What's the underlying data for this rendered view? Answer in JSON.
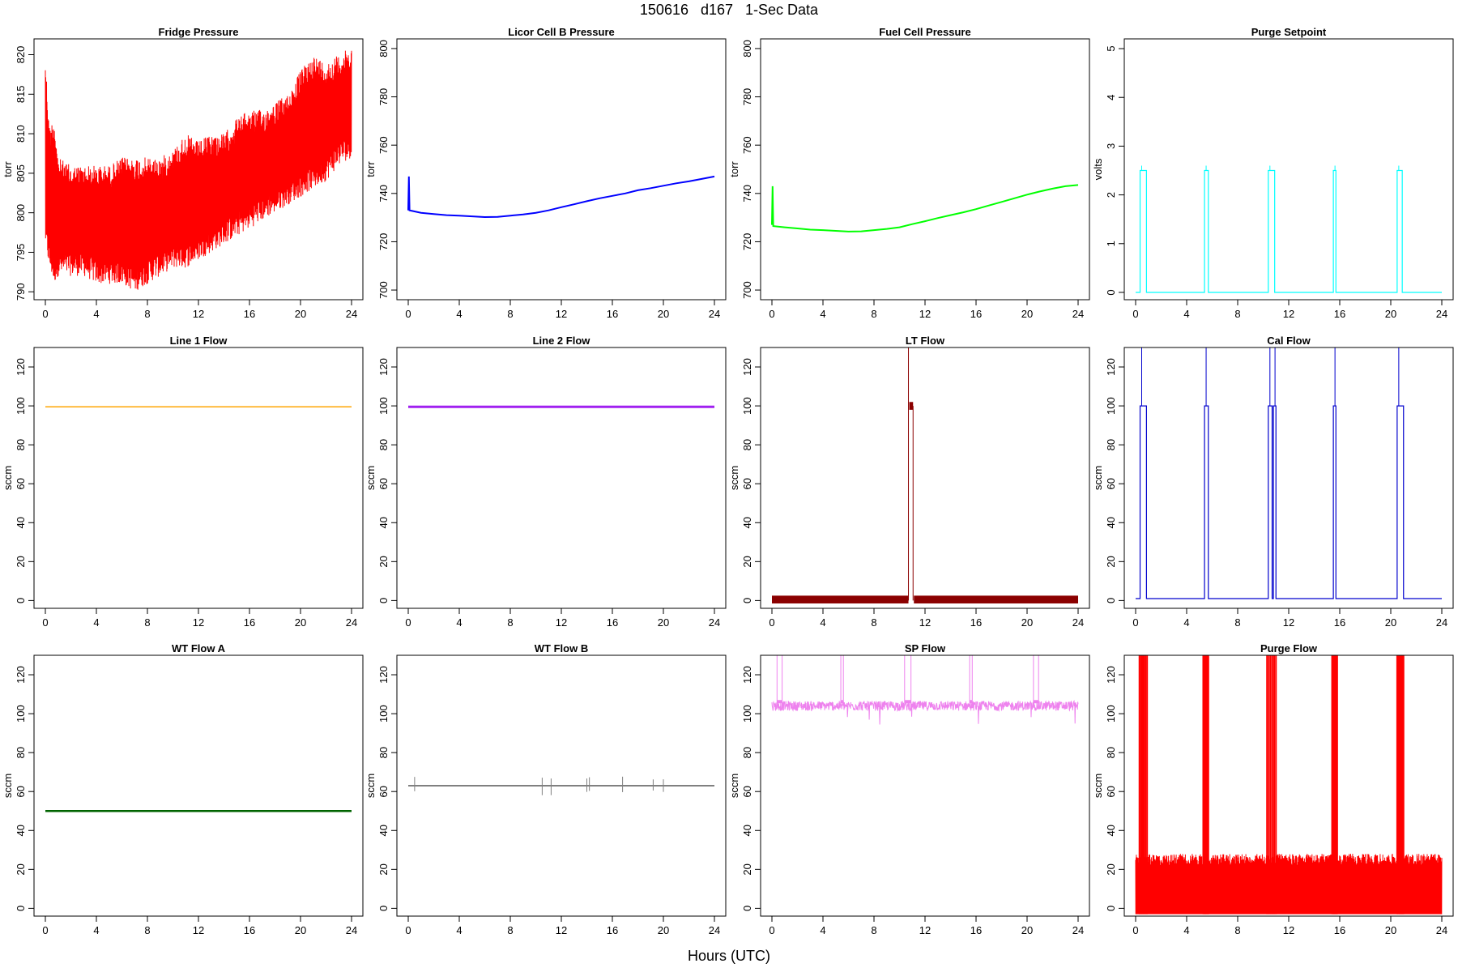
{
  "title": "150616   d167   1-Sec Data",
  "xlabel": "Hours (UTC)",
  "chart_data": [
    {
      "type": "line",
      "title": "Fridge Pressure",
      "ylabel": "torr",
      "color": "#ff0000",
      "xlim": [
        0,
        24
      ],
      "ylim": [
        789,
        822
      ],
      "xticks": [
        "0",
        "4",
        "8",
        "12",
        "16",
        "20",
        "24"
      ],
      "yticks": [
        "790",
        "795",
        "800",
        "805",
        "810",
        "815",
        "820"
      ],
      "series": [
        {
          "x": [
            0,
            0.3,
            0.7,
            1,
            2,
            3,
            4,
            5,
            6,
            7,
            8,
            9,
            10,
            11,
            12,
            13,
            14,
            15,
            16,
            17,
            18,
            19,
            20,
            21,
            22,
            23,
            24
          ],
          "upper": [
            820,
            811,
            812,
            807,
            806,
            806,
            806,
            806,
            807,
            807,
            807,
            807,
            808,
            810,
            809,
            810,
            810,
            812,
            813,
            813,
            814,
            815,
            818,
            820,
            819,
            820,
            821
          ],
          "lower": [
            796,
            793,
            791,
            792,
            792,
            792,
            791,
            791,
            791,
            790,
            791,
            792,
            793,
            793,
            794,
            795,
            796,
            797,
            798,
            799,
            800,
            801,
            802,
            803,
            804,
            806,
            807
          ]
        }
      ]
    },
    {
      "type": "line",
      "title": "Licor Cell B Pressure",
      "ylabel": "torr",
      "color": "#0000ff",
      "xlim": [
        0,
        24
      ],
      "ylim": [
        696,
        804
      ],
      "xticks": [
        "0",
        "4",
        "8",
        "12",
        "16",
        "20",
        "24"
      ],
      "yticks": [
        "700",
        "720",
        "740",
        "760",
        "780",
        "800"
      ],
      "series": [
        {
          "x": [
            0,
            0.05,
            0.1,
            1,
            2,
            3,
            4,
            5,
            6,
            7,
            8,
            9,
            10,
            11,
            12,
            13,
            14,
            15,
            16,
            17,
            18,
            19,
            20,
            21,
            22,
            23,
            24
          ],
          "values": [
            733,
            747,
            733,
            732,
            731.5,
            731,
            730.8,
            730.5,
            730.2,
            730.3,
            730.8,
            731.3,
            732,
            733,
            734.3,
            735.5,
            736.8,
            738,
            739,
            740,
            741.3,
            742.2,
            743.2,
            744.2,
            745,
            746,
            747
          ]
        }
      ]
    },
    {
      "type": "line",
      "title": "Fuel Cell Pressure",
      "ylabel": "torr",
      "color": "#00ff00",
      "xlim": [
        0,
        24
      ],
      "ylim": [
        696,
        804
      ],
      "xticks": [
        "0",
        "4",
        "8",
        "12",
        "16",
        "20",
        "24"
      ],
      "yticks": [
        "700",
        "720",
        "740",
        "760",
        "780",
        "800"
      ],
      "series": [
        {
          "x": [
            0,
            0.05,
            0.1,
            1,
            2,
            3,
            4,
            5,
            6,
            7,
            8,
            9,
            10,
            11,
            12,
            13,
            14,
            15,
            16,
            17,
            18,
            19,
            20,
            21,
            22,
            23,
            24
          ],
          "values": [
            727,
            743,
            726.5,
            726,
            725.5,
            725,
            724.8,
            724.5,
            724.2,
            724.3,
            724.8,
            725.3,
            726,
            727.3,
            728.5,
            729.8,
            731,
            732.2,
            733.5,
            735,
            736.5,
            738,
            739.5,
            740.8,
            742,
            743,
            743.5
          ]
        }
      ]
    },
    {
      "type": "line",
      "title": "Purge Setpoint",
      "ylabel": "volts",
      "color": "#00ffff",
      "xlim": [
        0,
        24
      ],
      "ylim": [
        -0.15,
        5.2
      ],
      "xticks": [
        "0",
        "4",
        "8",
        "12",
        "16",
        "20",
        "24"
      ],
      "yticks": [
        "0",
        "1",
        "2",
        "3",
        "4",
        "5"
      ],
      "pulses_hours": [
        [
          0.35,
          0.85
        ],
        [
          5.4,
          5.7
        ],
        [
          10.4,
          10.9
        ],
        [
          15.5,
          15.7
        ],
        [
          20.5,
          20.9
        ]
      ],
      "pulse_level": 2.5,
      "base_level": 0
    },
    {
      "type": "line",
      "title": "Line 1 Flow",
      "ylabel": "sccm",
      "color": "#ffa500",
      "xlim": [
        0,
        24
      ],
      "ylim": [
        -4,
        130
      ],
      "xticks": [
        "0",
        "4",
        "8",
        "12",
        "16",
        "20",
        "24"
      ],
      "yticks": [
        "0",
        "20",
        "40",
        "60",
        "80",
        "100",
        "120"
      ],
      "series": [
        {
          "x": [
            0,
            24
          ],
          "values": [
            99.5,
            99.5
          ]
        }
      ]
    },
    {
      "type": "line",
      "title": "Line 2 Flow",
      "ylabel": "sccm",
      "color": "#a020f0",
      "xlim": [
        0,
        24
      ],
      "ylim": [
        -4,
        130
      ],
      "xticks": [
        "0",
        "4",
        "8",
        "12",
        "16",
        "20",
        "24"
      ],
      "yticks": [
        "0",
        "20",
        "40",
        "60",
        "80",
        "100",
        "120"
      ],
      "series": [
        {
          "x": [
            0,
            24
          ],
          "values": [
            99.5,
            99.5
          ]
        }
      ]
    },
    {
      "type": "line",
      "title": "LT Flow",
      "ylabel": "sccm",
      "color": "#8b0000",
      "xlim": [
        0,
        24
      ],
      "ylim": [
        -4,
        130
      ],
      "xticks": [
        "0",
        "4",
        "8",
        "12",
        "16",
        "20",
        "24"
      ],
      "yticks": [
        "0",
        "20",
        "40",
        "60",
        "80",
        "100",
        "120"
      ],
      "base_level": 0.5,
      "spike_hours": [
        10.7,
        11.0
      ],
      "spike_level": 100
    },
    {
      "type": "line",
      "title": "Cal Flow",
      "ylabel": "sccm",
      "color": "#0000cd",
      "xlim": [
        0,
        24
      ],
      "ylim": [
        -4,
        130
      ],
      "xticks": [
        "0",
        "4",
        "8",
        "12",
        "16",
        "20",
        "24"
      ],
      "yticks": [
        "0",
        "20",
        "40",
        "60",
        "80",
        "100",
        "120"
      ],
      "pulses_hours": [
        [
          0.35,
          0.85
        ],
        [
          5.4,
          5.7
        ],
        [
          10.4,
          10.7
        ],
        [
          10.8,
          11.0
        ],
        [
          15.5,
          15.7
        ],
        [
          20.5,
          21.0
        ]
      ],
      "pulse_level": 100,
      "base_level": 1
    },
    {
      "type": "line",
      "title": "WT Flow A",
      "ylabel": "sccm",
      "color": "#006400",
      "xlim": [
        0,
        24
      ],
      "ylim": [
        -4,
        130
      ],
      "xticks": [
        "0",
        "4",
        "8",
        "12",
        "16",
        "20",
        "24"
      ],
      "yticks": [
        "0",
        "20",
        "40",
        "60",
        "80",
        "100",
        "120"
      ],
      "series": [
        {
          "x": [
            0,
            24
          ],
          "values": [
            50,
            50
          ]
        }
      ]
    },
    {
      "type": "line",
      "title": "WT Flow B",
      "ylabel": "sccm",
      "color": "#808080",
      "xlim": [
        0,
        24
      ],
      "ylim": [
        -4,
        130
      ],
      "xticks": [
        "0",
        "4",
        "8",
        "12",
        "16",
        "20",
        "24"
      ],
      "yticks": [
        "0",
        "20",
        "40",
        "60",
        "80",
        "100",
        "120"
      ],
      "series": [
        {
          "x": [
            0,
            24
          ],
          "values": [
            63,
            63
          ]
        }
      ]
    },
    {
      "type": "line",
      "title": "SP Flow",
      "ylabel": "sccm",
      "color": "#ee82ee",
      "xlim": [
        0,
        24
      ],
      "ylim": [
        -4,
        130
      ],
      "xticks": [
        "0",
        "4",
        "8",
        "12",
        "16",
        "20",
        "24"
      ],
      "yticks": [
        "0",
        "20",
        "40",
        "60",
        "80",
        "100",
        "120"
      ],
      "base_level": 104,
      "pulses_hours": [
        [
          0.4,
          0.8
        ],
        [
          5.4,
          5.6
        ],
        [
          10.4,
          10.9
        ],
        [
          15.5,
          15.7
        ],
        [
          20.5,
          20.9
        ]
      ],
      "pulse_level": 130
    },
    {
      "type": "line",
      "title": "Purge Flow",
      "ylabel": "sccm",
      "color": "#ff0000",
      "xlim": [
        0,
        24
      ],
      "ylim": [
        -4,
        130
      ],
      "xticks": [
        "0",
        "4",
        "8",
        "12",
        "16",
        "20",
        "24"
      ],
      "yticks": [
        "0",
        "20",
        "40",
        "60",
        "80",
        "100",
        "120"
      ],
      "base_range": [
        -3,
        28
      ],
      "pulses_hours": [
        [
          0.3,
          0.9
        ],
        [
          5.3,
          5.7
        ],
        [
          10.3,
          11.0
        ],
        [
          15.4,
          15.8
        ],
        [
          20.5,
          21.0
        ]
      ],
      "pulse_level": 130
    }
  ]
}
